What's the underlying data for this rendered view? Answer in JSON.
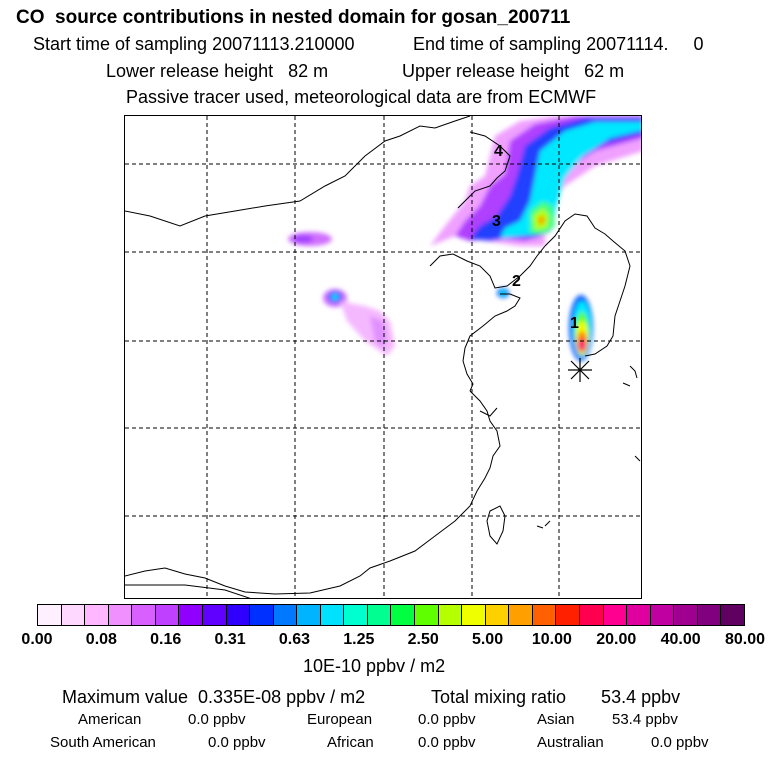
{
  "header": {
    "title": "CO  source contributions in nested domain for gosan_200711",
    "start_label": "Start time of sampling 20071113.210000",
    "end_label": "End time of sampling 20071114.     0",
    "lower_label": "Lower release height   82 m",
    "upper_label": "Upper release height   62 m",
    "note": "Passive tracer used, meteorological data are from ECMWF"
  },
  "map": {
    "points": [
      {
        "label": "1",
        "value": 1
      },
      {
        "label": "2",
        "value": 2
      },
      {
        "label": "3",
        "value": 3
      },
      {
        "label": "4",
        "value": 4
      }
    ],
    "receptor_icon": "asterisk-marker-icon"
  },
  "colorbar": {
    "colors": [
      "#fff0ff",
      "#ffd8ff",
      "#ffb8ff",
      "#f090ff",
      "#d860ff",
      "#c040ff",
      "#9000ff",
      "#6000ff",
      "#3000ff",
      "#0030ff",
      "#0078ff",
      "#00b4ff",
      "#00e0ff",
      "#00ffd0",
      "#00ff90",
      "#00ff40",
      "#60ff00",
      "#b4ff00",
      "#f0ff00",
      "#ffd000",
      "#ffa000",
      "#ff6000",
      "#ff2000",
      "#ff0050",
      "#ff0090",
      "#e000a0",
      "#c000a0",
      "#a00090",
      "#800080",
      "#600060"
    ],
    "ticks": [
      "0.00",
      "0.08",
      "0.16",
      "0.31",
      "0.63",
      "1.25",
      "2.50",
      "5.00",
      "10.00",
      "20.00",
      "40.00",
      "80.00"
    ],
    "unit": "10E-10 ppbv / m2"
  },
  "stats": {
    "max_label": "Maximum value  0.335E-08 ppbv / m2",
    "total_label": "Total mixing ratio       53.4 ppbv",
    "american": "American",
    "american_val": "0.0 ppbv",
    "european": "European",
    "european_val": "0.0 ppbv",
    "asian": "Asian",
    "asian_val": "53.4 ppbv",
    "south_american": "South American",
    "south_american_val": "0.0 ppbv",
    "african": "African",
    "african_val": "0.0 ppbv",
    "australian": "Australian",
    "australian_val": "0.0 ppbv"
  }
}
